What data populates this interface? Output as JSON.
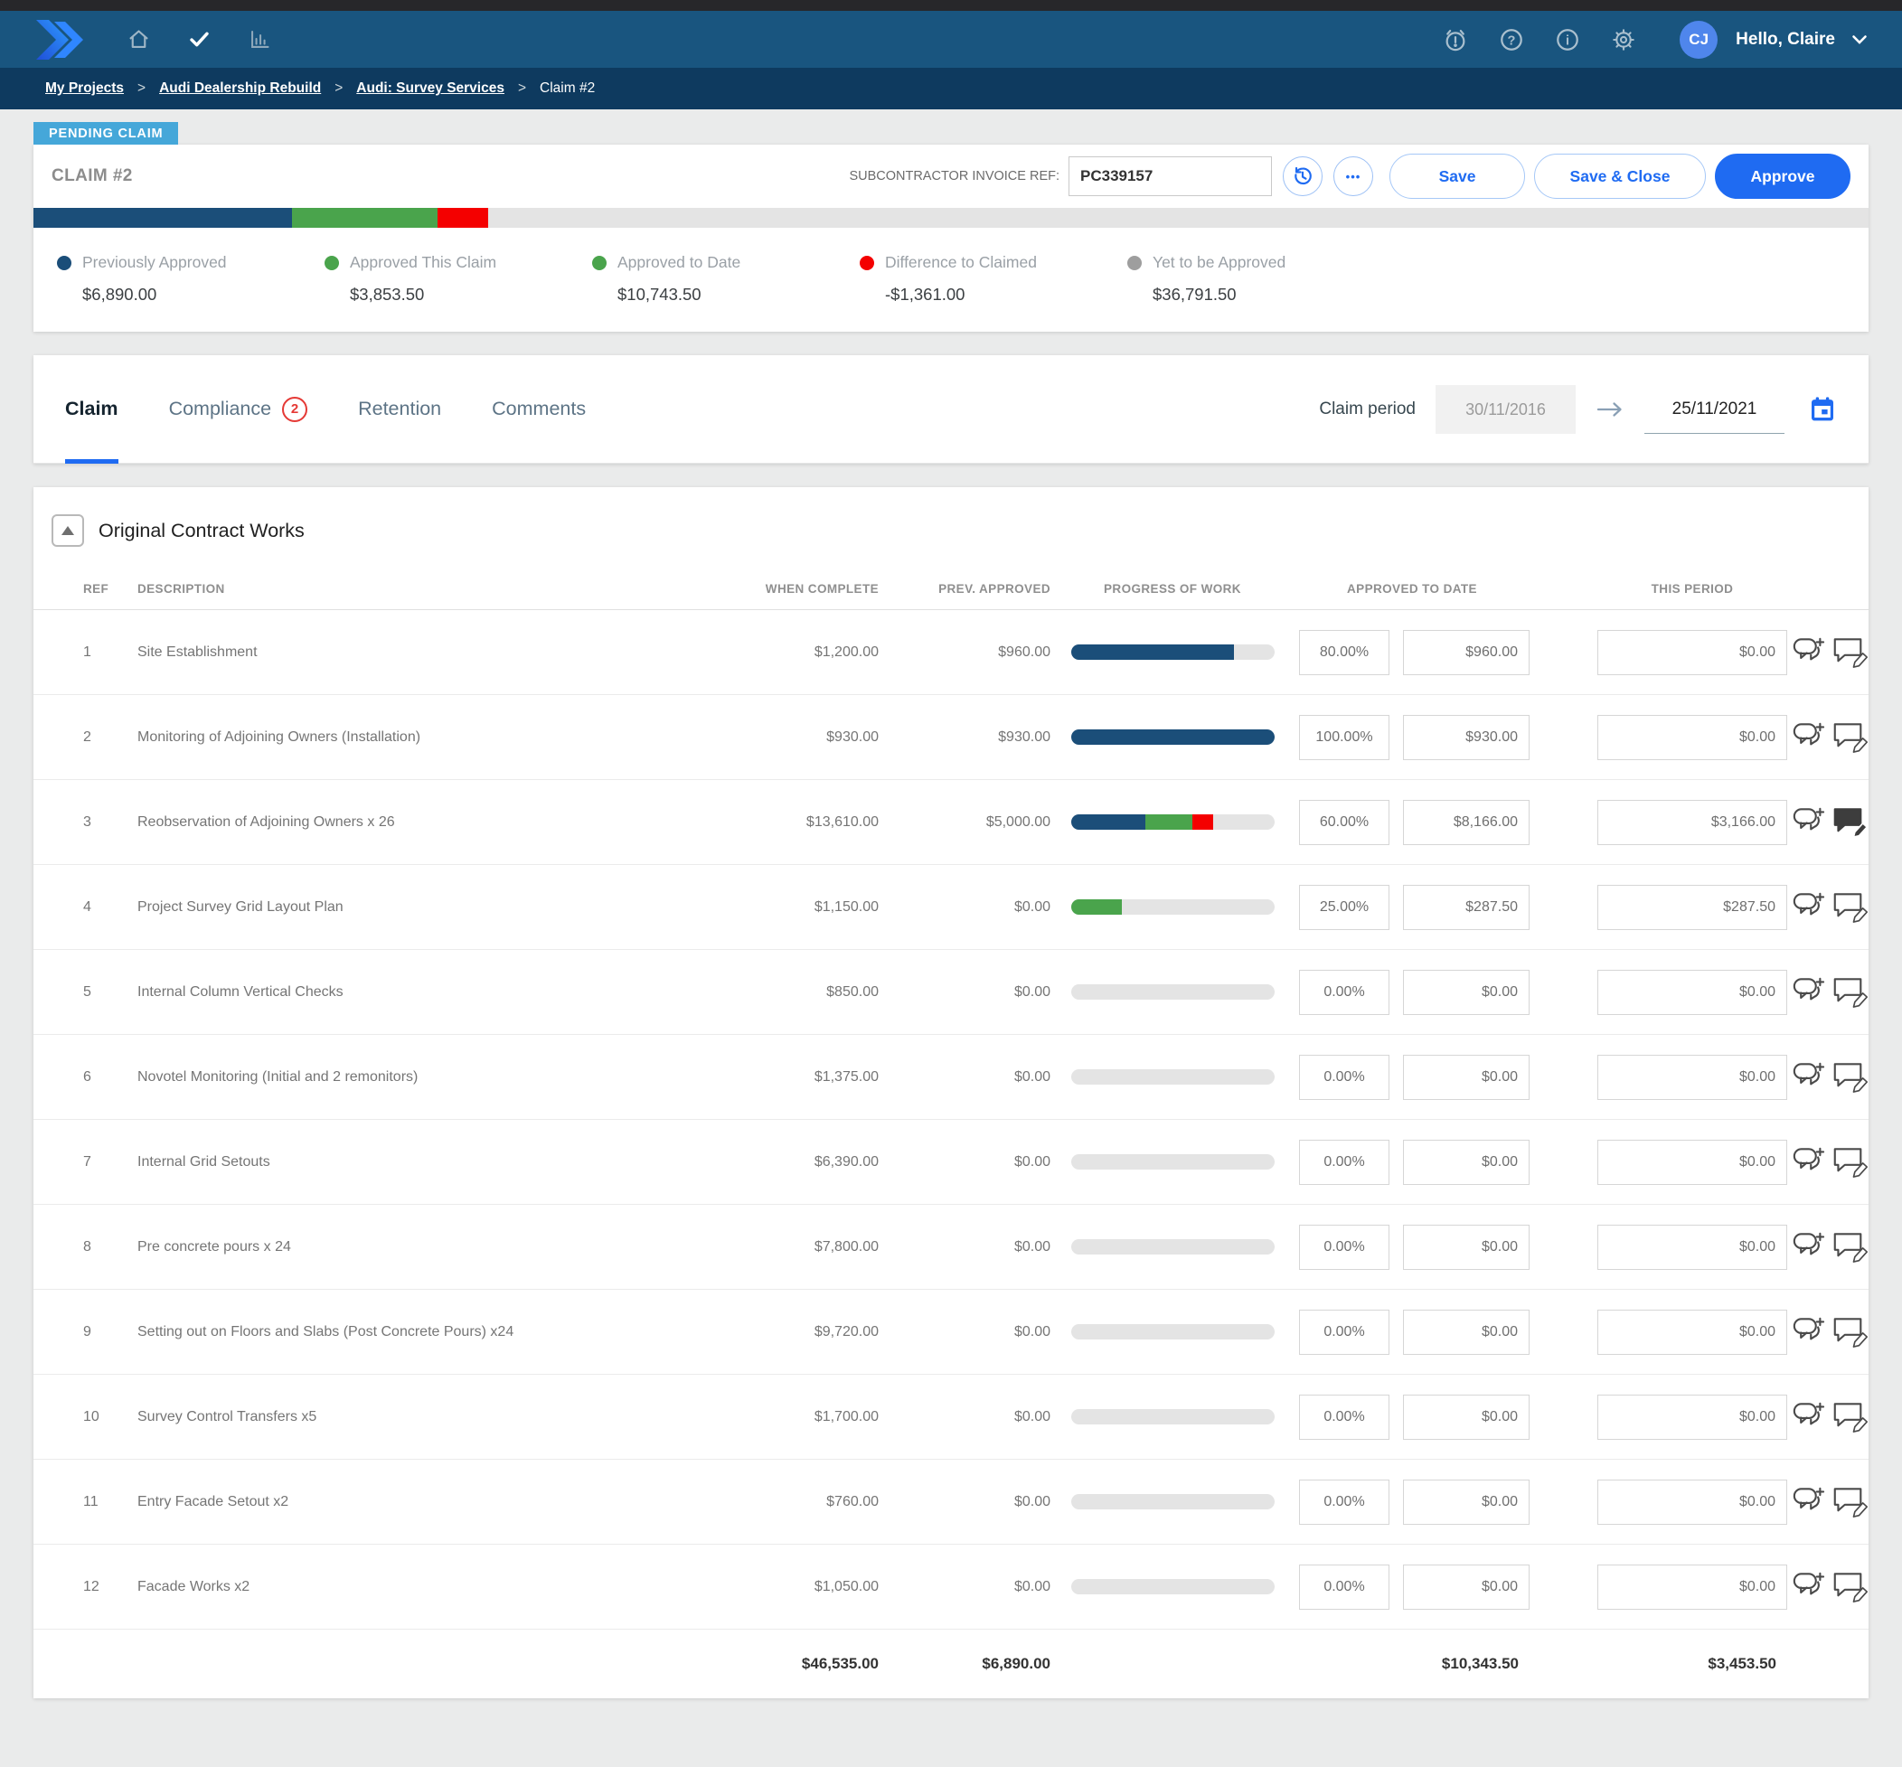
{
  "nav": {
    "greeting": "Hello, Claire",
    "avatar_initials": "CJ",
    "help_glyph": "?",
    "info_glyph": "i",
    "more_glyph": "•••"
  },
  "breadcrumb": {
    "separator": ">",
    "links": [
      "My Projects",
      "Audi Dealership Rebuild",
      "Audi: Survey Services"
    ],
    "current": "Claim #2"
  },
  "claim_header": {
    "status_badge": "PENDING CLAIM",
    "title": "CLAIM #2",
    "invoice_label": "SUBCONTRACTOR INVOICE REF:",
    "invoice_value": "PC339157",
    "save_label": "Save",
    "save_close_label": "Save & Close",
    "approve_label": "Approve"
  },
  "summary": {
    "segments": [
      {
        "color": "bar_blue",
        "pct": 14.1
      },
      {
        "color": "bar_green",
        "pct": 7.9
      },
      {
        "color": "bar_red",
        "pct": 2.8
      }
    ],
    "legend": [
      {
        "label": "Previously Approved",
        "value": "$6,890.00",
        "color": "#1b4e79"
      },
      {
        "label": "Approved This Claim",
        "value": "$3,853.50",
        "color": "#4aa44c"
      },
      {
        "label": "Approved to Date",
        "value": "$10,743.50",
        "color": "#4aa44c"
      },
      {
        "label": "Difference to Claimed",
        "value": "-$1,361.00",
        "color": "#f40000"
      },
      {
        "label": "Yet to be Approved",
        "value": "$36,791.50",
        "color": "#9e9e9e"
      }
    ]
  },
  "tabs": [
    {
      "label": "Claim"
    },
    {
      "label": "Compliance",
      "badge": "2"
    },
    {
      "label": "Retention"
    },
    {
      "label": "Comments"
    }
  ],
  "claim_period": {
    "label": "Claim period",
    "start": "30/11/2016",
    "end": "25/11/2021"
  },
  "section": {
    "title": "Original Contract Works"
  },
  "table": {
    "headers": [
      "REF",
      "DESCRIPTION",
      "WHEN COMPLETE",
      "PREV. APPROVED",
      "PROGRESS OF WORK",
      "APPROVED TO DATE",
      "THIS PERIOD"
    ],
    "rows": [
      {
        "ref": "1",
        "description": "Site Establishment",
        "when_complete": "$1,200.00",
        "prev_approved": "$960.00",
        "percent": "80.00%",
        "approved_to_date": "$960.00",
        "this_period": "$0.00",
        "has_note": false,
        "progress": [
          {
            "color": "bar_blue",
            "pct": 80
          }
        ]
      },
      {
        "ref": "2",
        "description": "Monitoring of Adjoining Owners (Installation)",
        "when_complete": "$930.00",
        "prev_approved": "$930.00",
        "percent": "100.00%",
        "approved_to_date": "$930.00",
        "this_period": "$0.00",
        "has_note": false,
        "progress": [
          {
            "color": "bar_blue",
            "pct": 100
          }
        ]
      },
      {
        "ref": "3",
        "description": "Reobservation of Adjoining Owners x 26",
        "when_complete": "$13,610.00",
        "prev_approved": "$5,000.00",
        "percent": "60.00%",
        "approved_to_date": "$8,166.00",
        "this_period": "$3,166.00",
        "has_note": true,
        "progress": [
          {
            "color": "bar_blue",
            "pct": 36.7
          },
          {
            "color": "bar_green",
            "pct": 23.3
          },
          {
            "color": "bar_red",
            "pct": 10
          }
        ]
      },
      {
        "ref": "4",
        "description": "Project Survey Grid Layout Plan",
        "when_complete": "$1,150.00",
        "prev_approved": "$0.00",
        "percent": "25.00%",
        "approved_to_date": "$287.50",
        "this_period": "$287.50",
        "has_note": false,
        "progress": [
          {
            "color": "bar_green",
            "pct": 25
          }
        ]
      },
      {
        "ref": "5",
        "description": "Internal Column Vertical Checks",
        "when_complete": "$850.00",
        "prev_approved": "$0.00",
        "percent": "0.00%",
        "approved_to_date": "$0.00",
        "this_period": "$0.00",
        "has_note": false,
        "progress": []
      },
      {
        "ref": "6",
        "description": "Novotel Monitoring (Initial and 2 remonitors)",
        "when_complete": "$1,375.00",
        "prev_approved": "$0.00",
        "percent": "0.00%",
        "approved_to_date": "$0.00",
        "this_period": "$0.00",
        "has_note": false,
        "progress": []
      },
      {
        "ref": "7",
        "description": "Internal Grid Setouts",
        "when_complete": "$6,390.00",
        "prev_approved": "$0.00",
        "percent": "0.00%",
        "approved_to_date": "$0.00",
        "this_period": "$0.00",
        "has_note": false,
        "progress": []
      },
      {
        "ref": "8",
        "description": "Pre concrete pours x 24",
        "when_complete": "$7,800.00",
        "prev_approved": "$0.00",
        "percent": "0.00%",
        "approved_to_date": "$0.00",
        "this_period": "$0.00",
        "has_note": false,
        "progress": []
      },
      {
        "ref": "9",
        "description": "Setting out on Floors and Slabs (Post Concrete Pours) x24",
        "when_complete": "$9,720.00",
        "prev_approved": "$0.00",
        "percent": "0.00%",
        "approved_to_date": "$0.00",
        "this_period": "$0.00",
        "has_note": false,
        "progress": []
      },
      {
        "ref": "10",
        "description": "Survey Control Transfers x5",
        "when_complete": "$1,700.00",
        "prev_approved": "$0.00",
        "percent": "0.00%",
        "approved_to_date": "$0.00",
        "this_period": "$0.00",
        "has_note": false,
        "progress": []
      },
      {
        "ref": "11",
        "description": "Entry Facade Setout x2",
        "when_complete": "$760.00",
        "prev_approved": "$0.00",
        "percent": "0.00%",
        "approved_to_date": "$0.00",
        "this_period": "$0.00",
        "has_note": false,
        "progress": []
      },
      {
        "ref": "12",
        "description": "Facade Works x2",
        "when_complete": "$1,050.00",
        "prev_approved": "$0.00",
        "percent": "0.00%",
        "approved_to_date": "$0.00",
        "this_period": "$0.00",
        "has_note": false,
        "progress": []
      }
    ],
    "totals": {
      "when_complete": "$46,535.00",
      "prev_approved": "$6,890.00",
      "approved_to_date": "$10,343.50",
      "this_period": "$3,453.50"
    }
  },
  "colors": {
    "accent_blue": "#1f6bf2",
    "nav_blue": "#19557f",
    "breadcrumb_navy": "#0e3a5f",
    "status_badge_blue": "#45a7d9",
    "bar_blue": "#1b4e79",
    "bar_green": "#4aa44c",
    "bar_red": "#f40000",
    "bar_gray": "#e4e4e4",
    "compliance_red": "#e53935"
  }
}
